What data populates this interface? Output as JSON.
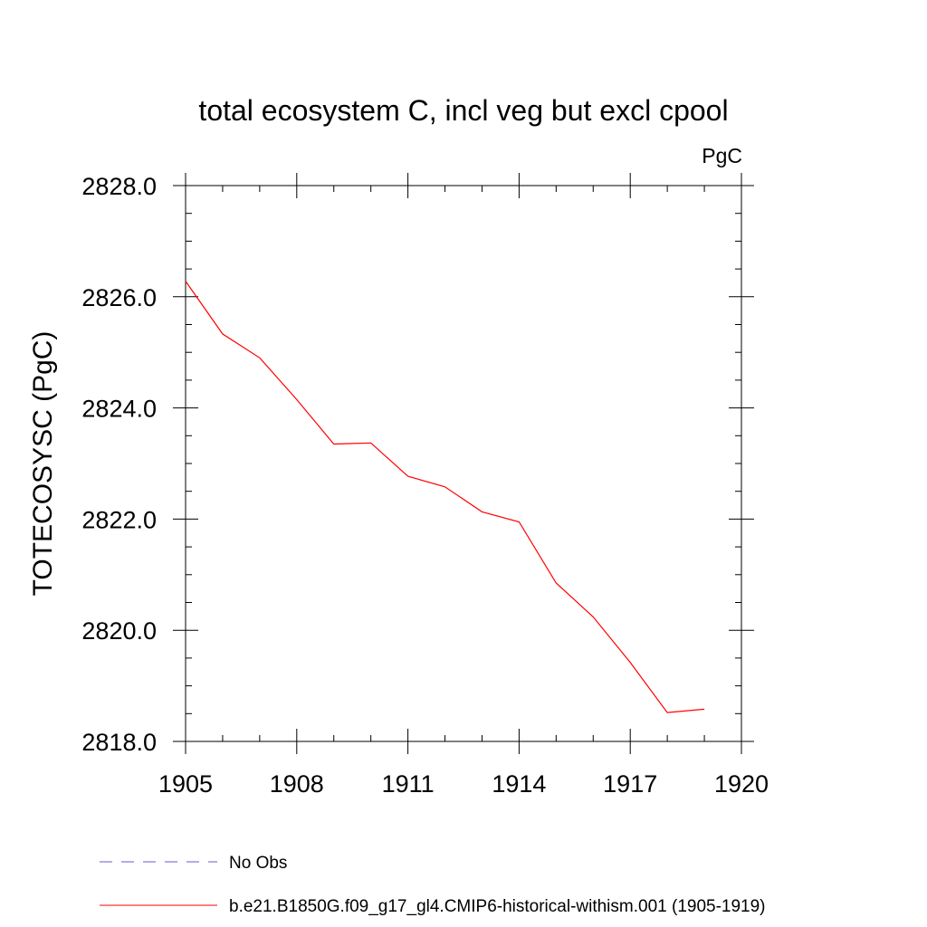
{
  "chart_data": {
    "type": "line",
    "title": "total ecosystem C, incl veg but excl cpool",
    "units_label": "PgC",
    "ylabel": "TOTECOSYSC  (PgC)",
    "xlabel": "",
    "xlim": [
      1905,
      1920
    ],
    "ylim": [
      2818.0,
      2828.0
    ],
    "x_ticks": [
      "1905",
      "1908",
      "1911",
      "1914",
      "1917",
      "1920"
    ],
    "y_ticks": [
      "2818.0",
      "2820.0",
      "2822.0",
      "2824.0",
      "2826.0",
      "2828.0"
    ],
    "grid": false,
    "legend_position": "bottom-left",
    "series": [
      {
        "name": "b.e21.B1850G.f09_g17_gl4.CMIP6-historical-withism.001 (1905-1919)",
        "color": "#ff0000",
        "dash": "solid",
        "x": [
          1905,
          1906,
          1907,
          1908,
          1909,
          1910,
          1911,
          1912,
          1913,
          1914,
          1915,
          1916,
          1917,
          1918,
          1919
        ],
        "values": [
          2826.28,
          2825.33,
          2824.9,
          2824.15,
          2823.35,
          2823.37,
          2822.77,
          2822.58,
          2822.13,
          2821.95,
          2820.85,
          2820.24,
          2819.42,
          2818.52,
          2818.58
        ]
      }
    ],
    "legend": [
      {
        "label": "No Obs",
        "color": "#6a5acd",
        "dash": "dashed"
      },
      {
        "label": "b.e21.B1850G.f09_g17_gl4.CMIP6-historical-withism.001 (1905-1919)",
        "color": "#ff0000",
        "dash": "solid"
      }
    ]
  }
}
